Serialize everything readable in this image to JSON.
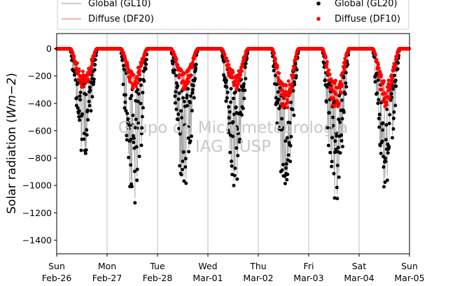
{
  "chart_data": {
    "type": "scatter",
    "ylabel": "Solar radiation (Wm−2)",
    "ylabel_parts": {
      "main": "Solar radiation (",
      "unit": "Wm",
      "exp": "−2",
      "close": ")"
    },
    "ylim": [
      -1500,
      110
    ],
    "xlim_days": [
      0,
      7
    ],
    "yticks": [
      0,
      -200,
      -400,
      -600,
      -800,
      -1000,
      -1200,
      -1400
    ],
    "xticks": [
      {
        "day": "Sun",
        "date": "Feb-26"
      },
      {
        "day": "Mon",
        "date": "Feb-27"
      },
      {
        "day": "Tue",
        "date": "Feb-28"
      },
      {
        "day": "Wed",
        "date": "Mar-01"
      },
      {
        "day": "Thu",
        "date": "Mar-02"
      },
      {
        "day": "Fri",
        "date": "Mar-03"
      },
      {
        "day": "Sat",
        "date": "Mar-04"
      },
      {
        "day": "Sun",
        "date": "Mar-05"
      }
    ],
    "grid": "vertical",
    "legend_placement": "top",
    "legend": [
      {
        "label": "Global (GL10)",
        "kind": "line",
        "color": "#aaaaaa"
      },
      {
        "label": "Diffuse (DF20)",
        "kind": "line",
        "color": "#f08080"
      },
      {
        "label": "Global (GL20)",
        "kind": "marker",
        "color": "#000000"
      },
      {
        "label": "Diffuse (DF10)",
        "kind": "marker",
        "color": "#ff0000"
      }
    ],
    "series": [
      {
        "name": "Global (GL20)",
        "color": "#000000",
        "daily_min": [
          -800,
          -1200,
          -1100,
          -1040,
          -1100,
          -1180,
          -1080
        ]
      },
      {
        "name": "Diffuse (DF10)",
        "color": "#ff0000",
        "daily_min": [
          -320,
          -300,
          -320,
          -310,
          -480,
          -460,
          -450
        ]
      }
    ],
    "watermark": [
      "Grupo de Micrometeorologia",
      "IAG - USP"
    ]
  }
}
